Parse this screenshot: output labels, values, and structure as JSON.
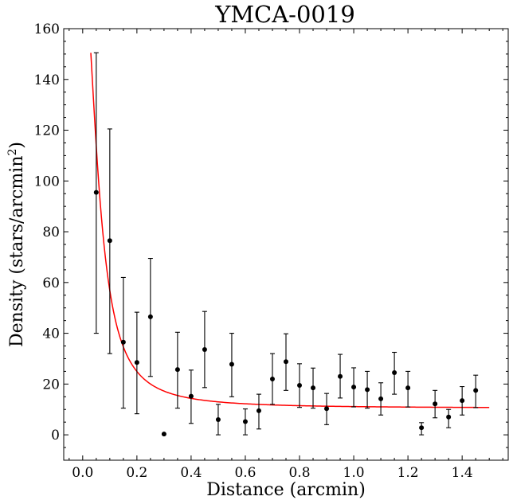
{
  "chart_data": {
    "type": "scatter",
    "title": "YMCA-0019",
    "xlabel": "Distance (arcmin)",
    "ylabel_main": "Density (stars/arcmin",
    "ylabel_sup": "2",
    "ylabel_end": ")",
    "xlim": [
      -0.07,
      1.57
    ],
    "ylim": [
      -10,
      160
    ],
    "xticks": [
      0.0,
      0.2,
      0.4,
      0.6,
      0.8,
      1.0,
      1.2,
      1.4
    ],
    "xtick_labels": [
      "0.0",
      "0.2",
      "0.4",
      "0.6",
      "0.8",
      "1.0",
      "1.2",
      "1.4"
    ],
    "yticks": [
      0,
      20,
      40,
      60,
      80,
      100,
      120,
      140,
      160
    ],
    "ytick_labels": [
      "0",
      "20",
      "40",
      "60",
      "80",
      "100",
      "120",
      "140",
      "160"
    ],
    "series": [
      {
        "name": "density",
        "x": [
          0.05,
          0.1,
          0.15,
          0.2,
          0.25,
          0.3,
          0.35,
          0.4,
          0.45,
          0.5,
          0.55,
          0.6,
          0.65,
          0.7,
          0.75,
          0.8,
          0.85,
          0.9,
          0.95,
          1.0,
          1.05,
          1.1,
          1.15,
          1.2,
          1.25,
          1.3,
          1.35,
          1.4,
          1.45
        ],
        "y": [
          95.5,
          76.5,
          36.5,
          28.5,
          46.5,
          0.3,
          25.7,
          15.2,
          33.6,
          6.0,
          27.8,
          5.2,
          9.5,
          22.0,
          28.8,
          19.5,
          18.5,
          10.3,
          23.0,
          18.8,
          17.8,
          14.2,
          24.5,
          18.5,
          2.8,
          12.2,
          7.0,
          13.5,
          17.5
        ],
        "yerr_low": [
          55.5,
          44.5,
          26.0,
          20.2,
          23.5,
          0.0,
          15.2,
          10.7,
          15.0,
          6.0,
          12.8,
          5.2,
          7.2,
          10.0,
          11.3,
          8.7,
          8.0,
          6.3,
          8.5,
          7.8,
          7.3,
          6.4,
          8.5,
          7.5,
          2.8,
          5.5,
          4.2,
          5.7,
          6.8
        ],
        "yerr_high": [
          55.0,
          44.0,
          25.5,
          19.8,
          23.0,
          0.0,
          14.7,
          10.3,
          15.0,
          6.0,
          12.2,
          5.0,
          6.5,
          10.0,
          11.0,
          8.5,
          7.8,
          6.0,
          8.7,
          7.6,
          7.2,
          6.3,
          8.0,
          6.5,
          2.0,
          5.3,
          3.0,
          5.5,
          6.0
        ]
      }
    ],
    "fit": {
      "name": "king-profile-fit",
      "color": "#ff0000",
      "x_start": 0.03,
      "x_end": 1.5,
      "background": 10.5,
      "central": 175.0,
      "core_radius": 0.06
    }
  }
}
